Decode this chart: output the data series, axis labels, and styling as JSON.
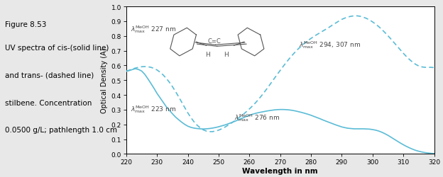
{
  "title_left": "Figure 8.53",
  "caption_lines": [
    "UV spectra of cis-(solid line)",
    "and trans- (dashed line)",
    "stilbene. Concentration",
    "0.0500 g/L; pathlength 1.0 cm"
  ],
  "xlabel": "Wavelength in nm",
  "ylabel": "Optical Density (A)",
  "xlim": [
    220,
    320
  ],
  "ylim": [
    0.0,
    1.0
  ],
  "xticks": [
    220,
    230,
    240,
    250,
    260,
    270,
    280,
    290,
    300,
    310,
    320
  ],
  "yticks": [
    0.0,
    0.1,
    0.2,
    0.3,
    0.4,
    0.5,
    0.6,
    0.7,
    0.8,
    0.9,
    1.0
  ],
  "line_color": "#5bbcd6",
  "bg_color": "#e8e8e8",
  "solid_x": [
    220,
    221,
    222,
    223,
    224,
    225,
    226,
    227,
    228,
    229,
    230,
    231,
    232,
    233,
    234,
    235,
    236,
    237,
    238,
    239,
    240,
    241,
    242,
    243,
    244,
    245,
    246,
    247,
    248,
    249,
    250,
    251,
    252,
    253,
    254,
    255,
    256,
    257,
    258,
    259,
    260,
    261,
    262,
    263,
    264,
    265,
    266,
    267,
    268,
    269,
    270,
    271,
    272,
    273,
    274,
    275,
    276,
    277,
    278,
    279,
    280,
    281,
    282,
    283,
    284,
    285,
    286,
    287,
    288,
    289,
    290,
    291,
    292,
    293,
    294,
    295,
    296,
    297,
    298,
    299,
    300,
    301,
    302,
    303,
    304,
    305,
    306,
    307,
    308,
    309,
    310,
    311,
    312,
    313,
    314,
    315,
    316,
    317,
    318,
    319,
    320
  ],
  "solid_y": [
    0.56,
    0.565,
    0.572,
    0.578,
    0.572,
    0.562,
    0.54,
    0.51,
    0.478,
    0.445,
    0.41,
    0.38,
    0.35,
    0.32,
    0.296,
    0.272,
    0.25,
    0.232,
    0.215,
    0.2,
    0.188,
    0.18,
    0.175,
    0.172,
    0.17,
    0.169,
    0.17,
    0.172,
    0.175,
    0.179,
    0.184,
    0.19,
    0.196,
    0.203,
    0.211,
    0.219,
    0.227,
    0.236,
    0.245,
    0.254,
    0.262,
    0.269,
    0.275,
    0.28,
    0.284,
    0.288,
    0.292,
    0.295,
    0.298,
    0.3,
    0.301,
    0.301,
    0.3,
    0.298,
    0.295,
    0.291,
    0.286,
    0.281,
    0.275,
    0.269,
    0.262,
    0.254,
    0.246,
    0.238,
    0.229,
    0.221,
    0.213,
    0.205,
    0.197,
    0.19,
    0.183,
    0.178,
    0.174,
    0.172,
    0.17,
    0.17,
    0.17,
    0.17,
    0.169,
    0.168,
    0.165,
    0.161,
    0.155,
    0.147,
    0.137,
    0.126,
    0.113,
    0.1,
    0.087,
    0.074,
    0.062,
    0.051,
    0.041,
    0.032,
    0.024,
    0.018,
    0.013,
    0.009,
    0.006,
    0.004,
    0.002
  ],
  "dashed_x": [
    220,
    221,
    222,
    223,
    224,
    225,
    226,
    227,
    228,
    229,
    230,
    231,
    232,
    233,
    234,
    235,
    236,
    237,
    238,
    239,
    240,
    241,
    242,
    243,
    244,
    245,
    246,
    247,
    248,
    249,
    250,
    251,
    252,
    253,
    254,
    255,
    256,
    257,
    258,
    259,
    260,
    261,
    262,
    263,
    264,
    265,
    266,
    267,
    268,
    269,
    270,
    271,
    272,
    273,
    274,
    275,
    276,
    277,
    278,
    279,
    280,
    281,
    282,
    283,
    284,
    285,
    286,
    287,
    288,
    289,
    290,
    291,
    292,
    293,
    294,
    295,
    296,
    297,
    298,
    299,
    300,
    301,
    302,
    303,
    304,
    305,
    306,
    307,
    308,
    309,
    310,
    311,
    312,
    313,
    314,
    315,
    316,
    317,
    318,
    319,
    320
  ],
  "dashed_y": [
    0.56,
    0.568,
    0.576,
    0.582,
    0.587,
    0.591,
    0.592,
    0.591,
    0.587,
    0.58,
    0.569,
    0.554,
    0.535,
    0.512,
    0.486,
    0.456,
    0.423,
    0.388,
    0.351,
    0.314,
    0.278,
    0.246,
    0.218,
    0.195,
    0.177,
    0.163,
    0.155,
    0.151,
    0.151,
    0.155,
    0.161,
    0.17,
    0.181,
    0.194,
    0.207,
    0.221,
    0.236,
    0.252,
    0.268,
    0.286,
    0.305,
    0.325,
    0.347,
    0.371,
    0.396,
    0.423,
    0.451,
    0.48,
    0.509,
    0.538,
    0.566,
    0.594,
    0.621,
    0.647,
    0.671,
    0.694,
    0.715,
    0.734,
    0.752,
    0.768,
    0.783,
    0.797,
    0.81,
    0.822,
    0.835,
    0.847,
    0.86,
    0.874,
    0.887,
    0.9,
    0.912,
    0.921,
    0.928,
    0.933,
    0.936,
    0.936,
    0.933,
    0.927,
    0.919,
    0.908,
    0.895,
    0.88,
    0.863,
    0.844,
    0.823,
    0.801,
    0.778,
    0.754,
    0.73,
    0.706,
    0.682,
    0.66,
    0.64,
    0.622,
    0.607,
    0.596,
    0.59,
    0.587,
    0.587,
    0.587,
    0.585
  ]
}
